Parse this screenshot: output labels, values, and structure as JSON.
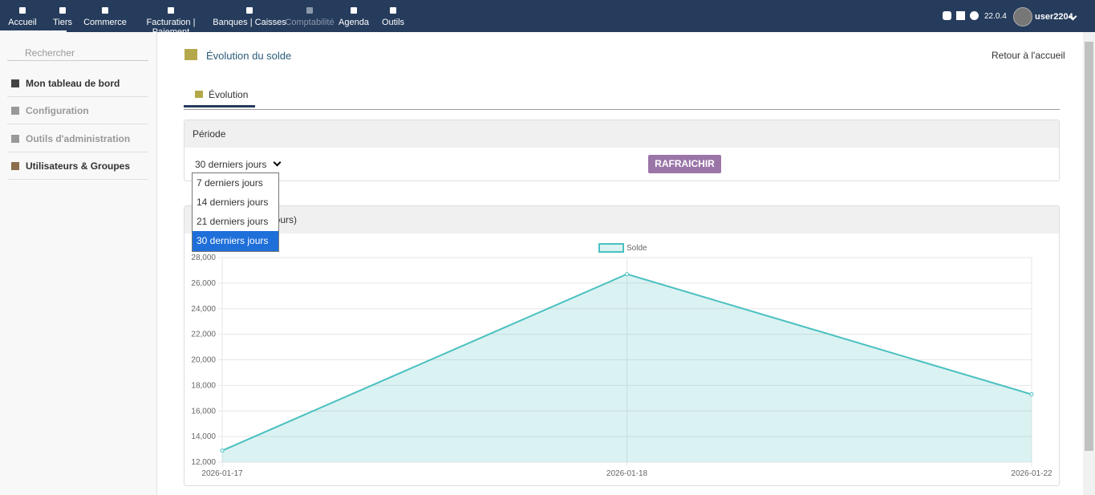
{
  "nav": {
    "items": [
      "Accueil",
      "Tiers",
      "Commerce",
      "Facturation | Paiement",
      "Banques | Caisses",
      "Comptabilité",
      "Agenda",
      "Outils"
    ],
    "version": "22.0.4",
    "user": "user2204"
  },
  "sidebar": {
    "search": "Rechercher",
    "items": [
      "Mon tableau de bord",
      "Configuration",
      "Outils d'administration",
      "Utilisateurs & Groupes"
    ]
  },
  "header": {
    "title": "Évolution du solde",
    "back_link": "Retour à l'accueil"
  },
  "tabs": [
    "Évolution"
  ],
  "period": {
    "label": "Période",
    "selected": "30 derniers jours",
    "button": "RAFRAICHIR",
    "options": [
      "7 derniers jours",
      "14 derniers jours",
      "21 derniers jours",
      "30 derniers jours"
    ]
  },
  "chart_panel": {
    "title": "jours)"
  },
  "chart_data": {
    "type": "line",
    "categories": [
      "2026-01-17",
      "2026-01-18",
      "2026-01-22"
    ],
    "series": [
      {
        "name": "Solde",
        "color": "#4bc0c0",
        "values": [
          12900,
          26700,
          17300
        ]
      }
    ],
    "ylim": [
      12000,
      28000
    ],
    "yticks": [
      {
        "value": 12000,
        "label": "12,000"
      },
      {
        "value": 14000,
        "label": "14,000"
      },
      {
        "value": 16000,
        "label": "16,000"
      },
      {
        "value": 18000,
        "label": "18,000"
      },
      {
        "value": 20000,
        "label": "20,000"
      },
      {
        "value": 22000,
        "label": "22,000"
      },
      {
        "value": 24000,
        "label": "24,000"
      },
      {
        "value": 26000,
        "label": "26,000"
      },
      {
        "value": 28000,
        "label": "28,000"
      }
    ],
    "grid": true,
    "fill": true,
    "legend": "top"
  }
}
